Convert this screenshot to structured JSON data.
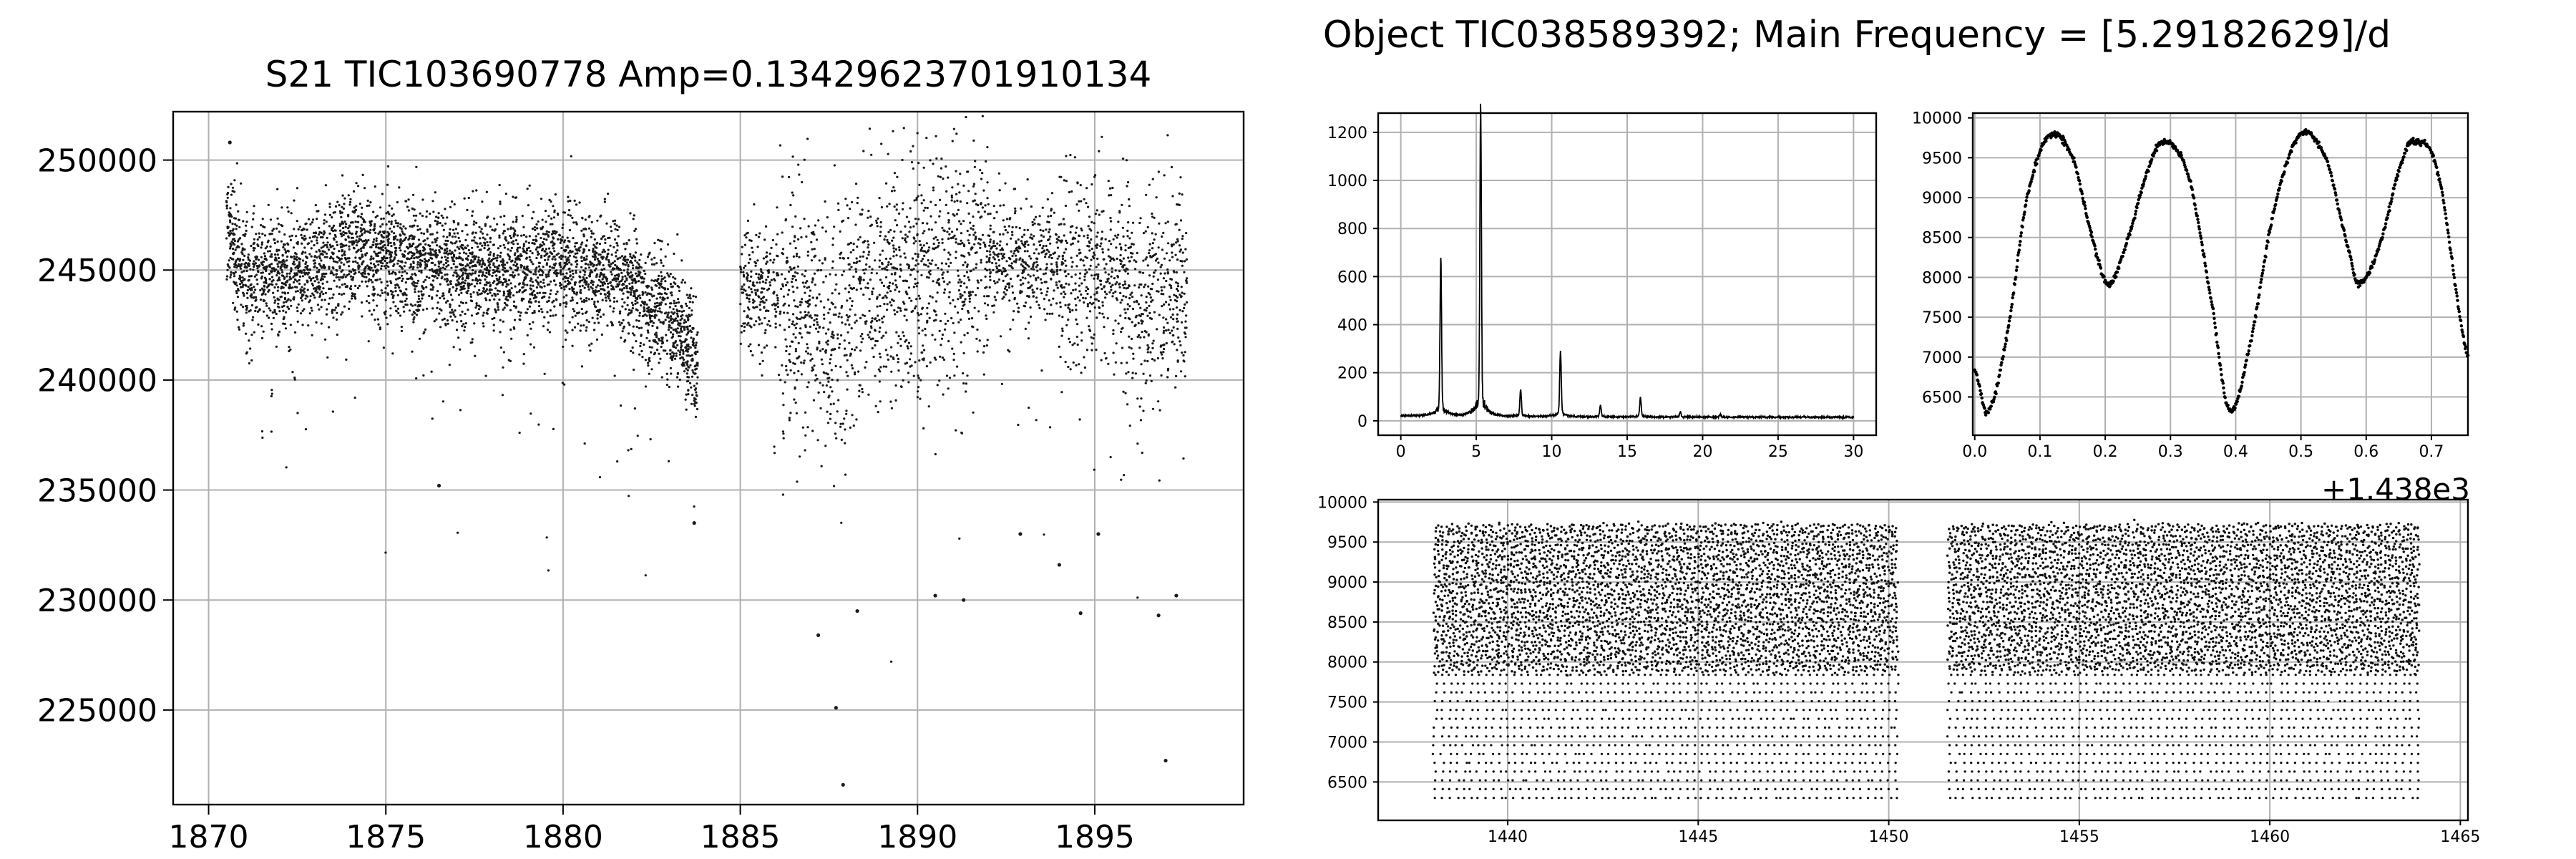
{
  "figure": {
    "right_title": "Object TIC038589392;  Main Frequency = [5.29182629]/d"
  },
  "chart_data": [
    {
      "type": "scatter",
      "title": "S21  TIC103690778  Amp=0.13429623701910134",
      "xlabel": "",
      "ylabel": "",
      "xlim": [
        1869.0,
        1899.2
      ],
      "ylim": [
        220700,
        252200
      ],
      "xticks": [
        1870,
        1875,
        1880,
        1885,
        1890,
        1895
      ],
      "yticks": [
        225000,
        230000,
        235000,
        240000,
        245000,
        250000
      ],
      "ytick_labels": [
        "225000",
        "230000",
        "235000",
        "240000",
        "245000",
        "250000"
      ],
      "grid": true,
      "segments": [
        [
          1870.5,
          1883.8
        ],
        [
          1885.0,
          1897.6
        ]
      ],
      "baseline": [
        [
          1870.5,
          247200
        ],
        [
          1871.0,
          244600
        ],
        [
          1872.0,
          244800
        ],
        [
          1874.0,
          245900
        ],
        [
          1876.0,
          245300
        ],
        [
          1878.0,
          244900
        ],
        [
          1880.0,
          245300
        ],
        [
          1881.5,
          244800
        ],
        [
          1882.5,
          243500
        ],
        [
          1883.3,
          242200
        ],
        [
          1883.8,
          240500
        ],
        [
          1885.0,
          244200
        ],
        [
          1886.5,
          243900
        ],
        [
          1887.5,
          242600
        ],
        [
          1888.5,
          244000
        ],
        [
          1890.0,
          244900
        ],
        [
          1892.0,
          245500
        ],
        [
          1894.0,
          245300
        ],
        [
          1895.5,
          244900
        ],
        [
          1896.5,
          243500
        ],
        [
          1897.6,
          244200
        ]
      ],
      "outliers": [
        [
          1870.6,
          250800
        ],
        [
          1887.9,
          221600
        ],
        [
          1897.0,
          222700
        ],
        [
          1887.7,
          225100
        ],
        [
          1883.7,
          233500
        ],
        [
          1876.5,
          235200
        ],
        [
          1890.5,
          230200
        ],
        [
          1891.3,
          230000
        ],
        [
          1894.6,
          229400
        ],
        [
          1896.8,
          229300
        ],
        [
          1888.3,
          229500
        ],
        [
          1887.2,
          228400
        ],
        [
          1894.0,
          231600
        ],
        [
          1895.1,
          233000
        ],
        [
          1897.3,
          230200
        ],
        [
          1892.9,
          233000
        ]
      ]
    },
    {
      "type": "line",
      "title": "",
      "xlabel": "",
      "ylabel": "",
      "xlim": [
        -1.5,
        31.5
      ],
      "ylim": [
        -60,
        1280
      ],
      "xticks": [
        0,
        5,
        10,
        15,
        20,
        25,
        30
      ],
      "yticks": [
        0,
        200,
        400,
        600,
        800,
        1000,
        1200
      ],
      "grid": true,
      "peaks": [
        {
          "x": 2.65,
          "y": 615
        },
        {
          "x": 5.29,
          "y": 1220
        },
        {
          "x": 7.94,
          "y": 105
        },
        {
          "x": 10.58,
          "y": 255
        },
        {
          "x": 13.23,
          "y": 45
        },
        {
          "x": 15.88,
          "y": 75
        },
        {
          "x": 18.52,
          "y": 22
        },
        {
          "x": 21.17,
          "y": 10
        }
      ]
    },
    {
      "type": "scatter",
      "title": "",
      "xlabel": "",
      "ylabel": "",
      "xlim": [
        -0.003,
        0.756
      ],
      "ylim": [
        6020,
        10060
      ],
      "xticks": [
        0.0,
        0.1,
        0.2,
        0.3,
        0.4,
        0.5,
        0.6,
        0.7
      ],
      "yticks": [
        6500,
        7000,
        7500,
        8000,
        8500,
        9000,
        9500,
        10000
      ],
      "grid": true,
      "points": [
        [
          0.0,
          6850
        ],
        [
          0.02,
          6320
        ],
        [
          0.05,
          7300
        ],
        [
          0.08,
          9000
        ],
        [
          0.115,
          9780
        ],
        [
          0.15,
          9500
        ],
        [
          0.18,
          8500
        ],
        [
          0.205,
          7920
        ],
        [
          0.235,
          8500
        ],
        [
          0.27,
          9450
        ],
        [
          0.295,
          9700
        ],
        [
          0.33,
          9200
        ],
        [
          0.365,
          7600
        ],
        [
          0.39,
          6330
        ],
        [
          0.42,
          7100
        ],
        [
          0.46,
          8900
        ],
        [
          0.5,
          9800
        ],
        [
          0.54,
          9450
        ],
        [
          0.575,
          8300
        ],
        [
          0.59,
          7920
        ],
        [
          0.62,
          8400
        ],
        [
          0.655,
          9450
        ],
        [
          0.675,
          9700
        ],
        [
          0.71,
          9300
        ],
        [
          0.756,
          7000
        ]
      ]
    },
    {
      "type": "scatter",
      "title": "",
      "xlabel": "",
      "ylabel": "",
      "offset_label": "+1.438e3",
      "xlim": [
        1436.6,
        1465.2
      ],
      "ylim": [
        6020,
        10030
      ],
      "xticks": [
        1440,
        1445,
        1450,
        1455,
        1460,
        1465
      ],
      "yticks": [
        6500,
        7000,
        7500,
        8000,
        8500,
        9000,
        9500,
        10000
      ],
      "grid": true,
      "segments": [
        [
          1438.1,
          1450.2
        ],
        [
          1451.6,
          1463.9
        ]
      ],
      "range": [
        6300,
        9750
      ],
      "dense_band": [
        7900,
        9750
      ]
    }
  ]
}
